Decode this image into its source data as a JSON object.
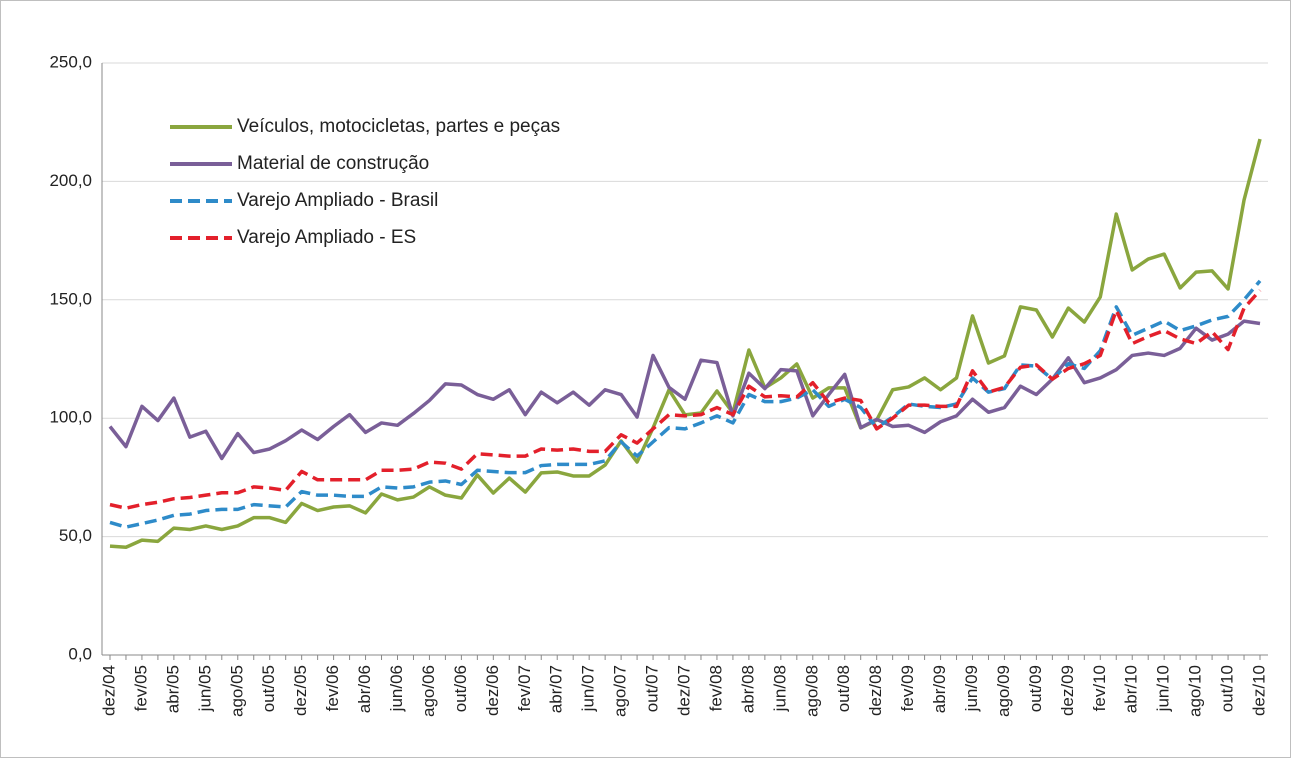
{
  "chart_data": {
    "type": "line",
    "categories": [
      "dez/04",
      null,
      "fev/05",
      null,
      "abr/05",
      null,
      "jun/05",
      null,
      "ago/05",
      null,
      "out/05",
      null,
      "dez/05",
      null,
      "fev/06",
      null,
      "abr/06",
      null,
      "jun/06",
      null,
      "ago/06",
      null,
      "out/06",
      null,
      "dez/06",
      null,
      "fev/07",
      null,
      "abr/07",
      null,
      "jun/07",
      null,
      "ago/07",
      null,
      "out/07",
      null,
      "dez/07",
      null,
      "fev/08",
      null,
      "abr/08",
      null,
      "jun/08",
      null,
      "ago/08",
      null,
      "out/08",
      null,
      "dez/08",
      null,
      "fev/09",
      null,
      "abr/09",
      null,
      "jun/09",
      null,
      "ago/09",
      null,
      "out/09",
      null,
      "dez/09",
      null,
      "fev/10",
      null,
      "abr/10",
      null,
      "jun/10",
      null,
      "ago/10",
      null,
      "out/10",
      null,
      "dez/10"
    ],
    "series": [
      {
        "name": "Veículos, motocicletas, partes e peças",
        "color": "#8aa63e",
        "dashed": false,
        "values": [
          46,
          45.5,
          48.5,
          48,
          53.6,
          53,
          54.5,
          53,
          54.5,
          58,
          58,
          56,
          64,
          61,
          62.5,
          63,
          60,
          68,
          65.5,
          66.7,
          71,
          67.5,
          66.3,
          76,
          68.4,
          74.7,
          68.8,
          76.9,
          77.3,
          75.6,
          75.6,
          80.2,
          90.4,
          81.5,
          95.9,
          112,
          101.4,
          102.2,
          111.5,
          102.2,
          128.8,
          112.8,
          117,
          122.9,
          108.5,
          112.8,
          112.8,
          95.9,
          99.2,
          112,
          113.2,
          117,
          112,
          117,
          143.2,
          123.3,
          126.3,
          147,
          145.7,
          134.3,
          146.5,
          140.6,
          151.2,
          186.2,
          162.6,
          167.2,
          169.3,
          155,
          161.7,
          162.2,
          154.6,
          192.1,
          217.9
        ]
      },
      {
        "name": "Material de construção",
        "color": "#7a5f98",
        "dashed": false,
        "values": [
          96.5,
          88,
          105,
          99,
          108.5,
          92,
          94.5,
          83,
          93.5,
          85.5,
          87,
          90.5,
          95,
          91,
          96.5,
          101.5,
          94,
          98,
          97,
          102,
          107.5,
          114.5,
          114,
          110,
          108,
          112,
          101.5,
          111,
          106.5,
          111,
          105.5,
          112,
          110,
          100.5,
          126.5,
          113,
          108,
          124.5,
          123.5,
          101,
          119,
          112.5,
          120.5,
          120,
          101,
          110,
          118.5,
          96,
          99.5,
          96.5,
          97,
          94,
          98.5,
          101,
          108,
          102.5,
          104.5,
          113.5,
          110,
          116.5,
          125.5,
          115,
          117,
          120.5,
          126.5,
          127.5,
          126.5,
          129.5,
          138,
          133,
          135.5,
          141,
          140
        ]
      },
      {
        "name": "Varejo Ampliado - Brasil",
        "color": "#2e8bc9",
        "dashed": true,
        "values": [
          56,
          54,
          55.5,
          57,
          59,
          59.5,
          61,
          61.5,
          61.5,
          63.5,
          63,
          62.5,
          69,
          67.5,
          67.5,
          67,
          67,
          71,
          70.5,
          71,
          73,
          73.5,
          72,
          78,
          77.5,
          77,
          77,
          80,
          80.5,
          80.5,
          80.5,
          82,
          90,
          84,
          90,
          96,
          95.5,
          98,
          101,
          98,
          110,
          107,
          107,
          108.5,
          112,
          105,
          108,
          104.5,
          96,
          100.5,
          106,
          105,
          104.5,
          106,
          117,
          111,
          112.5,
          122.5,
          122,
          116.5,
          123,
          121,
          128.5,
          147,
          135,
          138,
          141,
          137,
          139,
          141.5,
          143,
          150,
          158
        ]
      },
      {
        "name": "Varejo Ampliado - ES",
        "color": "#e3202b",
        "dashed": true,
        "values": [
          63.5,
          62,
          63.5,
          64.5,
          66,
          66.5,
          67.5,
          68.5,
          68.5,
          71,
          70.5,
          69.5,
          77.5,
          74,
          74,
          74,
          74,
          78,
          78,
          78.5,
          81.5,
          81,
          78.5,
          85,
          84.5,
          84,
          84,
          87,
          86.5,
          87,
          86,
          86,
          93,
          89.5,
          95.5,
          101.5,
          101,
          101.5,
          104.5,
          101.5,
          113.5,
          109,
          109.5,
          109,
          115,
          106.5,
          108.5,
          107.5,
          95.5,
          100,
          105.5,
          105.5,
          105,
          105,
          120,
          111,
          113,
          121.5,
          122.5,
          116.5,
          121,
          123,
          126.5,
          145.5,
          131.5,
          134.5,
          137,
          133.5,
          131.5,
          136.5,
          129,
          146.5,
          154
        ]
      }
    ],
    "ylim": [
      0,
      250
    ],
    "yticks": [
      {
        "value": 0,
        "label": "0,0"
      },
      {
        "value": 50,
        "label": "50,0"
      },
      {
        "value": 100,
        "label": "100,0"
      },
      {
        "value": 150,
        "label": "150,0"
      },
      {
        "value": 200,
        "label": "200,0"
      },
      {
        "value": 250,
        "label": "250,0"
      }
    ],
    "grid": true,
    "legend": "upper left"
  }
}
